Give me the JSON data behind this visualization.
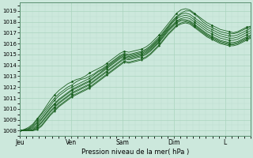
{
  "xlabel": "Pression niveau de la mer( hPa )",
  "bg_color": "#cce8dc",
  "plot_bg_color": "#cce8dc",
  "grid_major_color": "#aad4be",
  "grid_minor_color": "#bcdece",
  "line_color": "#1a6020",
  "ylim": [
    1007.5,
    1019.8
  ],
  "yticks": [
    1008,
    1009,
    1010,
    1011,
    1012,
    1013,
    1014,
    1015,
    1016,
    1017,
    1018,
    1019
  ],
  "day_labels": [
    "Jeu",
    "Ven",
    "Sam",
    "Dim",
    "L"
  ],
  "day_positions": [
    0,
    24,
    48,
    72,
    96
  ],
  "total_hours": 108,
  "series": [
    [
      1008.0,
      1008.1,
      1008.3,
      1008.6,
      1009.1,
      1009.6,
      1010.2,
      1010.8,
      1011.3,
      1011.7,
      1012.0,
      1012.3,
      1012.5,
      1012.7,
      1012.8,
      1013.0,
      1013.3,
      1013.5,
      1013.7,
      1013.9,
      1014.2,
      1014.5,
      1014.8,
      1015.1,
      1015.3,
      1015.2,
      1015.3,
      1015.4,
      1015.5,
      1015.7,
      1016.0,
      1016.4,
      1016.8,
      1017.3,
      1017.8,
      1018.3,
      1018.8,
      1019.1,
      1019.2,
      1019.1,
      1018.8,
      1018.5,
      1018.2,
      1017.9,
      1017.7,
      1017.5,
      1017.3,
      1017.2,
      1017.1,
      1017.0,
      1017.1,
      1017.3,
      1017.5,
      1017.6
    ],
    [
      1008.0,
      1008.1,
      1008.2,
      1008.5,
      1009.0,
      1009.5,
      1010.0,
      1010.5,
      1011.0,
      1011.4,
      1011.7,
      1012.0,
      1012.2,
      1012.5,
      1012.7,
      1012.8,
      1013.0,
      1013.2,
      1013.5,
      1013.7,
      1014.0,
      1014.3,
      1014.6,
      1014.9,
      1015.1,
      1015.0,
      1015.1,
      1015.2,
      1015.3,
      1015.5,
      1015.8,
      1016.2,
      1016.6,
      1017.1,
      1017.6,
      1018.1,
      1018.5,
      1018.8,
      1019.0,
      1019.0,
      1018.7,
      1018.4,
      1018.0,
      1017.7,
      1017.5,
      1017.3,
      1017.1,
      1017.0,
      1016.9,
      1016.9,
      1017.0,
      1017.2,
      1017.4,
      1017.5
    ],
    [
      1008.0,
      1008.05,
      1008.15,
      1008.4,
      1008.8,
      1009.3,
      1009.8,
      1010.3,
      1010.8,
      1011.2,
      1011.5,
      1011.8,
      1012.0,
      1012.2,
      1012.4,
      1012.6,
      1012.8,
      1013.1,
      1013.4,
      1013.6,
      1013.9,
      1014.2,
      1014.5,
      1014.8,
      1015.0,
      1014.9,
      1015.0,
      1015.1,
      1015.2,
      1015.4,
      1015.7,
      1016.1,
      1016.5,
      1017.0,
      1017.5,
      1018.0,
      1018.4,
      1018.7,
      1018.8,
      1018.7,
      1018.4,
      1018.1,
      1017.8,
      1017.5,
      1017.3,
      1017.1,
      1016.9,
      1016.8,
      1016.7,
      1016.7,
      1016.8,
      1017.0,
      1017.2,
      1017.4
    ],
    [
      1008.0,
      1008.05,
      1008.1,
      1008.3,
      1008.7,
      1009.1,
      1009.6,
      1010.1,
      1010.5,
      1010.9,
      1011.2,
      1011.5,
      1011.8,
      1012.0,
      1012.2,
      1012.4,
      1012.6,
      1012.9,
      1013.2,
      1013.5,
      1013.8,
      1014.1,
      1014.4,
      1014.7,
      1014.9,
      1014.8,
      1014.9,
      1015.0,
      1015.1,
      1015.3,
      1015.6,
      1016.0,
      1016.4,
      1016.9,
      1017.4,
      1017.9,
      1018.3,
      1018.5,
      1018.6,
      1018.5,
      1018.2,
      1017.9,
      1017.6,
      1017.3,
      1017.1,
      1016.9,
      1016.7,
      1016.6,
      1016.5,
      1016.5,
      1016.6,
      1016.8,
      1017.0,
      1017.2
    ],
    [
      1008.0,
      1008.0,
      1008.05,
      1008.2,
      1008.5,
      1009.0,
      1009.5,
      1010.0,
      1010.4,
      1010.8,
      1011.1,
      1011.4,
      1011.7,
      1011.9,
      1012.1,
      1012.3,
      1012.5,
      1012.8,
      1013.1,
      1013.4,
      1013.7,
      1014.0,
      1014.3,
      1014.6,
      1014.8,
      1014.7,
      1014.8,
      1014.9,
      1015.0,
      1015.2,
      1015.5,
      1015.9,
      1016.3,
      1016.8,
      1017.3,
      1017.7,
      1018.1,
      1018.3,
      1018.4,
      1018.3,
      1018.0,
      1017.7,
      1017.4,
      1017.1,
      1016.9,
      1016.7,
      1016.5,
      1016.4,
      1016.3,
      1016.3,
      1016.4,
      1016.6,
      1016.8,
      1017.0
    ],
    [
      1008.0,
      1008.0,
      1008.0,
      1008.1,
      1008.4,
      1008.8,
      1009.3,
      1009.8,
      1010.2,
      1010.6,
      1010.9,
      1011.2,
      1011.5,
      1011.7,
      1011.9,
      1012.1,
      1012.3,
      1012.6,
      1012.9,
      1013.2,
      1013.5,
      1013.8,
      1014.1,
      1014.4,
      1014.7,
      1014.6,
      1014.7,
      1014.8,
      1014.9,
      1015.1,
      1015.4,
      1015.8,
      1016.2,
      1016.7,
      1017.2,
      1017.6,
      1018.0,
      1018.2,
      1018.2,
      1018.1,
      1017.8,
      1017.5,
      1017.2,
      1016.9,
      1016.7,
      1016.5,
      1016.3,
      1016.2,
      1016.1,
      1016.1,
      1016.2,
      1016.4,
      1016.6,
      1016.8
    ],
    [
      1008.0,
      1008.0,
      1008.0,
      1008.05,
      1008.3,
      1008.7,
      1009.2,
      1009.7,
      1010.1,
      1010.5,
      1010.8,
      1011.1,
      1011.4,
      1011.6,
      1011.8,
      1012.0,
      1012.2,
      1012.5,
      1012.8,
      1013.1,
      1013.4,
      1013.7,
      1014.0,
      1014.3,
      1014.6,
      1014.5,
      1014.6,
      1014.7,
      1014.8,
      1015.0,
      1015.3,
      1015.7,
      1016.1,
      1016.6,
      1017.1,
      1017.5,
      1017.9,
      1018.1,
      1018.1,
      1018.0,
      1017.7,
      1017.4,
      1017.1,
      1016.8,
      1016.6,
      1016.4,
      1016.2,
      1016.1,
      1016.0,
      1016.0,
      1016.1,
      1016.3,
      1016.5,
      1016.7
    ],
    [
      1008.0,
      1008.0,
      1008.0,
      1008.0,
      1008.2,
      1008.5,
      1009.0,
      1009.5,
      1009.9,
      1010.3,
      1010.6,
      1010.9,
      1011.2,
      1011.4,
      1011.6,
      1011.8,
      1012.0,
      1012.3,
      1012.6,
      1012.9,
      1013.2,
      1013.5,
      1013.8,
      1014.1,
      1014.4,
      1014.3,
      1014.4,
      1014.5,
      1014.6,
      1014.8,
      1015.1,
      1015.5,
      1015.9,
      1016.4,
      1016.9,
      1017.3,
      1017.7,
      1017.9,
      1018.0,
      1017.9,
      1017.6,
      1017.3,
      1017.0,
      1016.7,
      1016.5,
      1016.3,
      1016.1,
      1016.0,
      1015.9,
      1015.9,
      1016.0,
      1016.2,
      1016.4,
      1016.6
    ],
    [
      1008.0,
      1008.0,
      1008.0,
      1008.0,
      1008.1,
      1008.4,
      1008.9,
      1009.4,
      1009.8,
      1010.2,
      1010.5,
      1010.8,
      1011.1,
      1011.3,
      1011.5,
      1011.7,
      1011.9,
      1012.2,
      1012.5,
      1012.8,
      1013.1,
      1013.4,
      1013.7,
      1014.0,
      1014.3,
      1014.2,
      1014.3,
      1014.4,
      1014.5,
      1014.7,
      1015.0,
      1015.4,
      1015.8,
      1016.3,
      1016.8,
      1017.2,
      1017.6,
      1017.8,
      1017.9,
      1017.8,
      1017.5,
      1017.2,
      1016.9,
      1016.6,
      1016.4,
      1016.2,
      1016.0,
      1015.9,
      1015.8,
      1015.8,
      1015.9,
      1016.1,
      1016.3,
      1016.5
    ]
  ]
}
